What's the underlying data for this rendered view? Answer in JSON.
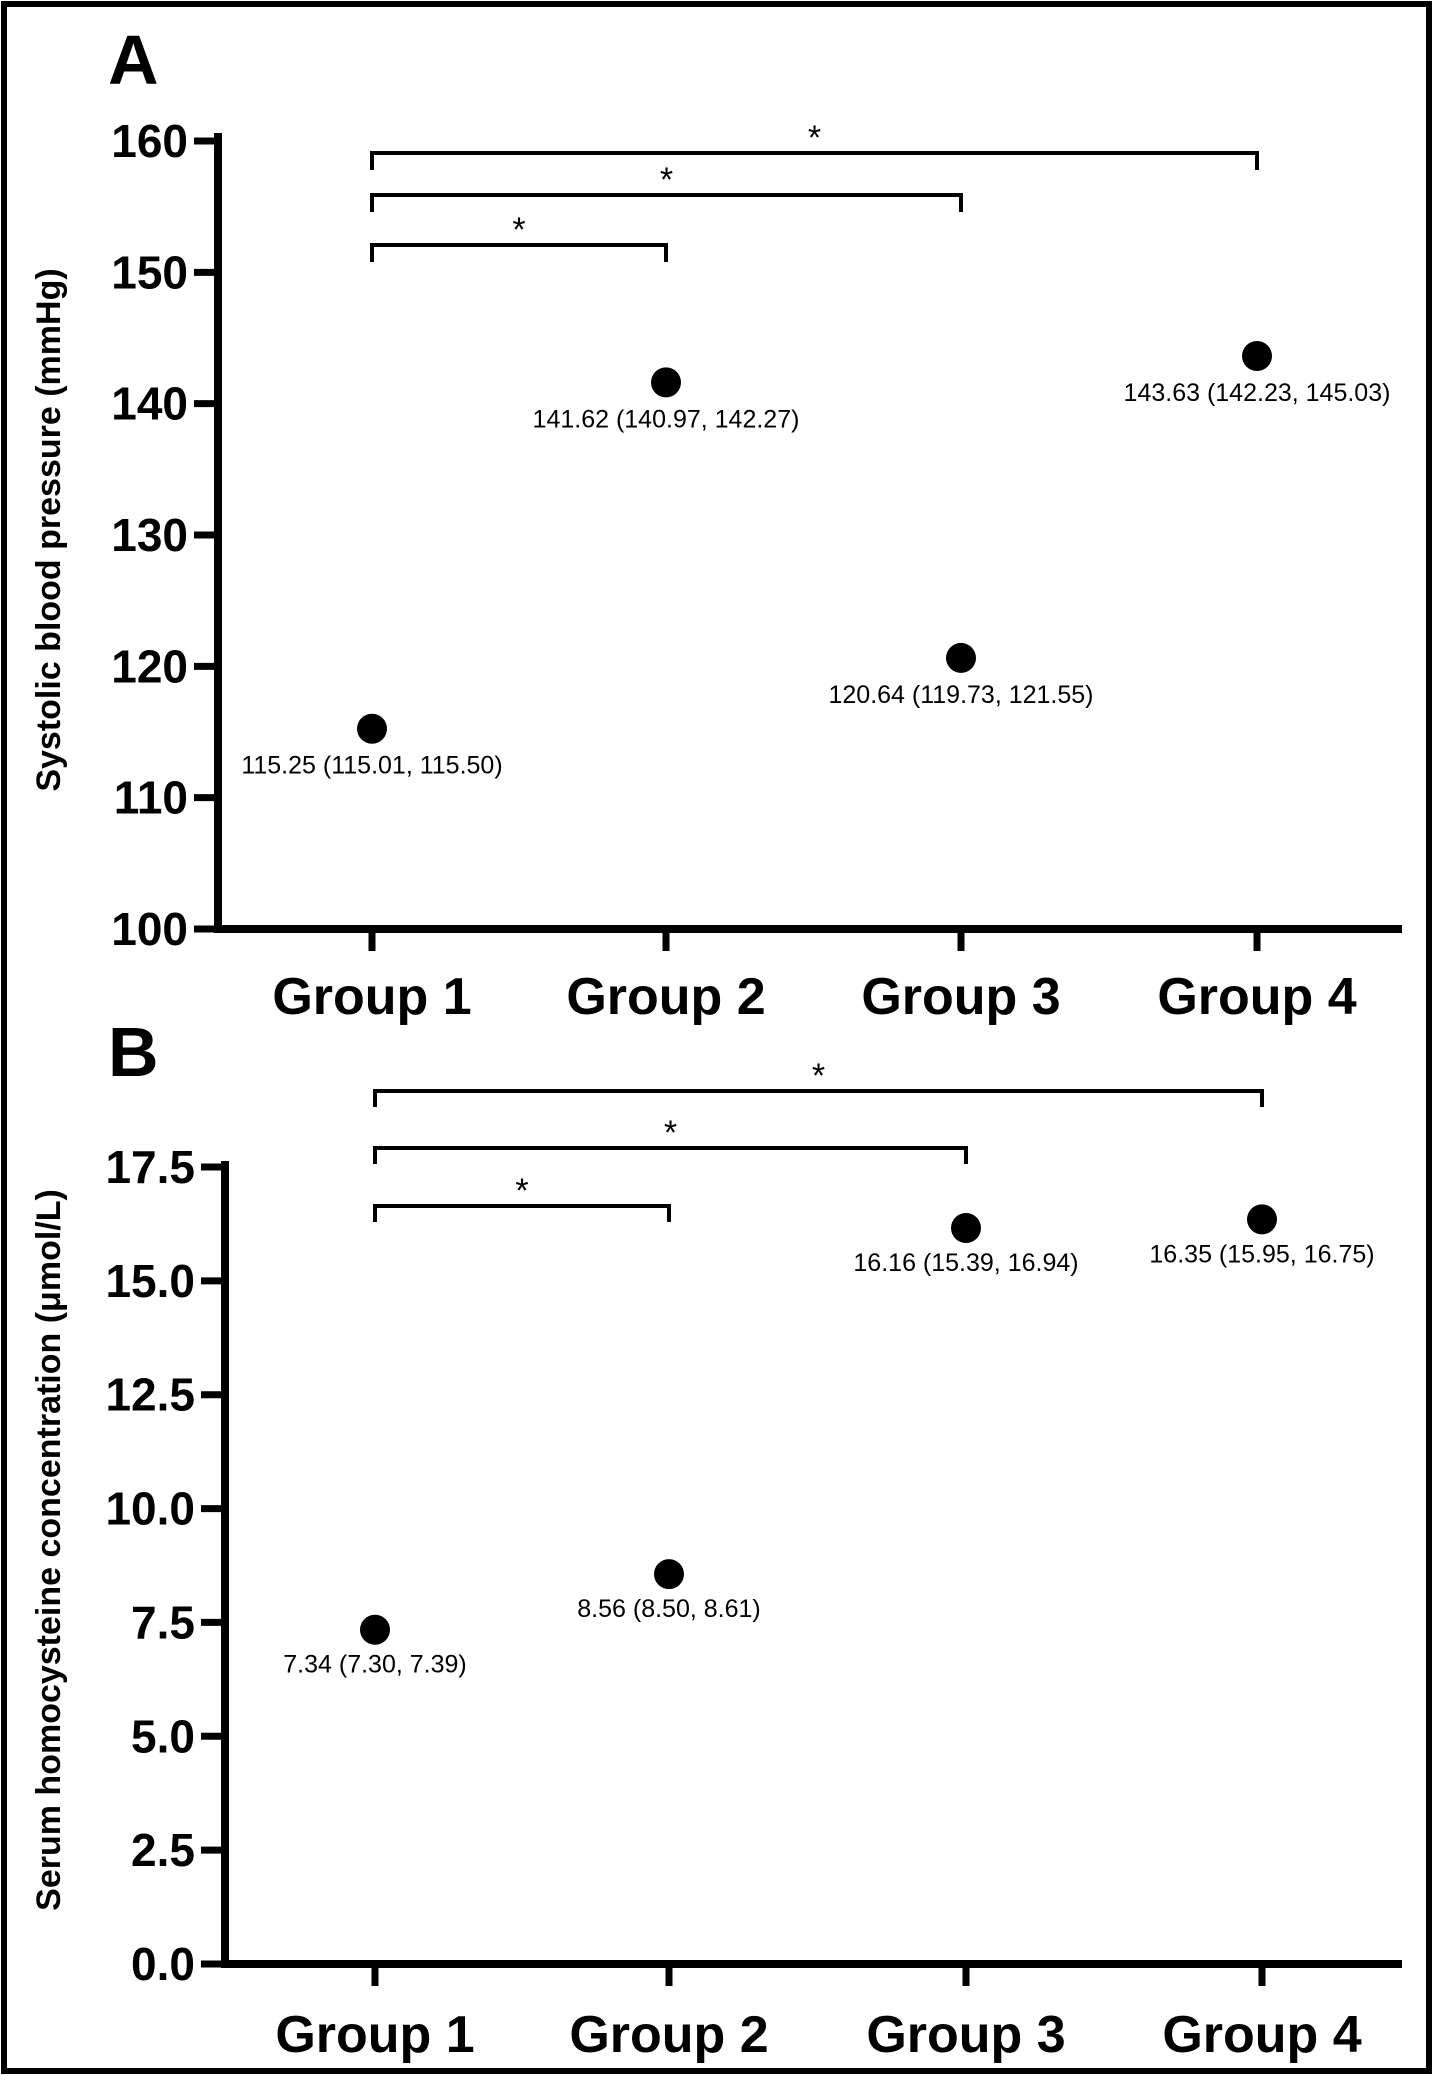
{
  "chart_data": [
    {
      "type": "scatter",
      "panel_label": "A",
      "categories": [
        "Group 1",
        "Group 2",
        "Group 3",
        "Group 4"
      ],
      "ylabel": "Systolic blood pressure  (mmHg)",
      "ylim": [
        100,
        160
      ],
      "yticks": [
        "100",
        "110",
        "120",
        "130",
        "140",
        "150",
        "160"
      ],
      "series": [
        {
          "values": [
            115.25,
            141.62,
            120.64,
            143.63
          ],
          "lower": [
            115.01,
            140.97,
            119.73,
            142.23
          ],
          "upper": [
            115.5,
            142.27,
            121.55,
            145.03
          ],
          "labels": [
            "115.25 (115.01, 115.50)",
            "141.62 (140.97, 142.27)",
            "120.64 (119.73, 121.55)",
            "143.63 (142.23, 145.03)"
          ]
        }
      ],
      "significance": [
        {
          "from": "Group 1",
          "to": "Group 2",
          "label": "*"
        },
        {
          "from": "Group 1",
          "to": "Group 3",
          "label": "*"
        },
        {
          "from": "Group 1",
          "to": "Group 4",
          "label": "*"
        }
      ],
      "grid": false
    },
    {
      "type": "scatter",
      "panel_label": "B",
      "categories": [
        "Group 1",
        "Group 2",
        "Group 3",
        "Group 4"
      ],
      "ylabel": "Serum homocysteine concentration (μmol/L)",
      "ylim": [
        0,
        17.5
      ],
      "yticks": [
        "0.0",
        "2.5",
        "5.0",
        "7.5",
        "10.0",
        "12.5",
        "15.0",
        "17.5"
      ],
      "series": [
        {
          "values": [
            7.34,
            8.56,
            16.16,
            16.35
          ],
          "lower": [
            7.3,
            8.5,
            15.39,
            15.95
          ],
          "upper": [
            7.39,
            8.61,
            16.94,
            16.75
          ],
          "labels": [
            "7.34 (7.30, 7.39)",
            "8.56 (8.50, 8.61)",
            "16.16 (15.39, 16.94)",
            "16.35 (15.95, 16.75)"
          ]
        }
      ],
      "significance": [
        {
          "from": "Group 1",
          "to": "Group 2",
          "label": "*"
        },
        {
          "from": "Group 1",
          "to": "Group 3",
          "label": "*"
        },
        {
          "from": "Group 1",
          "to": "Group 4",
          "label": "*"
        }
      ],
      "grid": false
    }
  ]
}
